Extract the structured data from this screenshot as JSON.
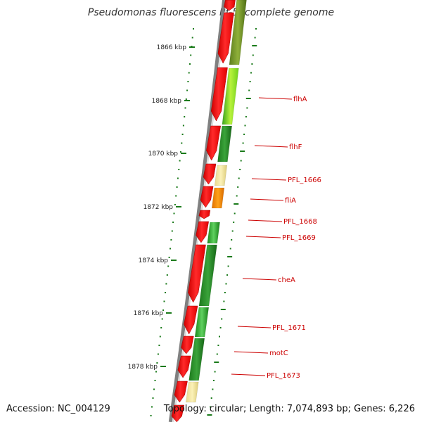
{
  "title": "Pseudomonas fluorescens Pf-5, complete genome",
  "footer": {
    "accession": "Accession: NC_004129",
    "summary": "Topology: circular; Length: 7,074,893 bp; Genes: 6,226"
  },
  "colors": {
    "forward_strand": "#ff0000",
    "backbone": "#808080",
    "tick": "#1a7a1a",
    "gene_label": "#cc0000"
  },
  "kbp_ticks": [
    "1866 kbp",
    "1868 kbp",
    "1870 kbp",
    "1872 kbp",
    "1874 kbp",
    "1876 kbp",
    "1878 kbp"
  ],
  "gene_labels": [
    "flhA",
    "flhF",
    "PFL_1666",
    "fliA",
    "PFL_1668",
    "PFL_1669",
    "cheA",
    "PFL_1671",
    "motC",
    "PFL_1673"
  ]
}
